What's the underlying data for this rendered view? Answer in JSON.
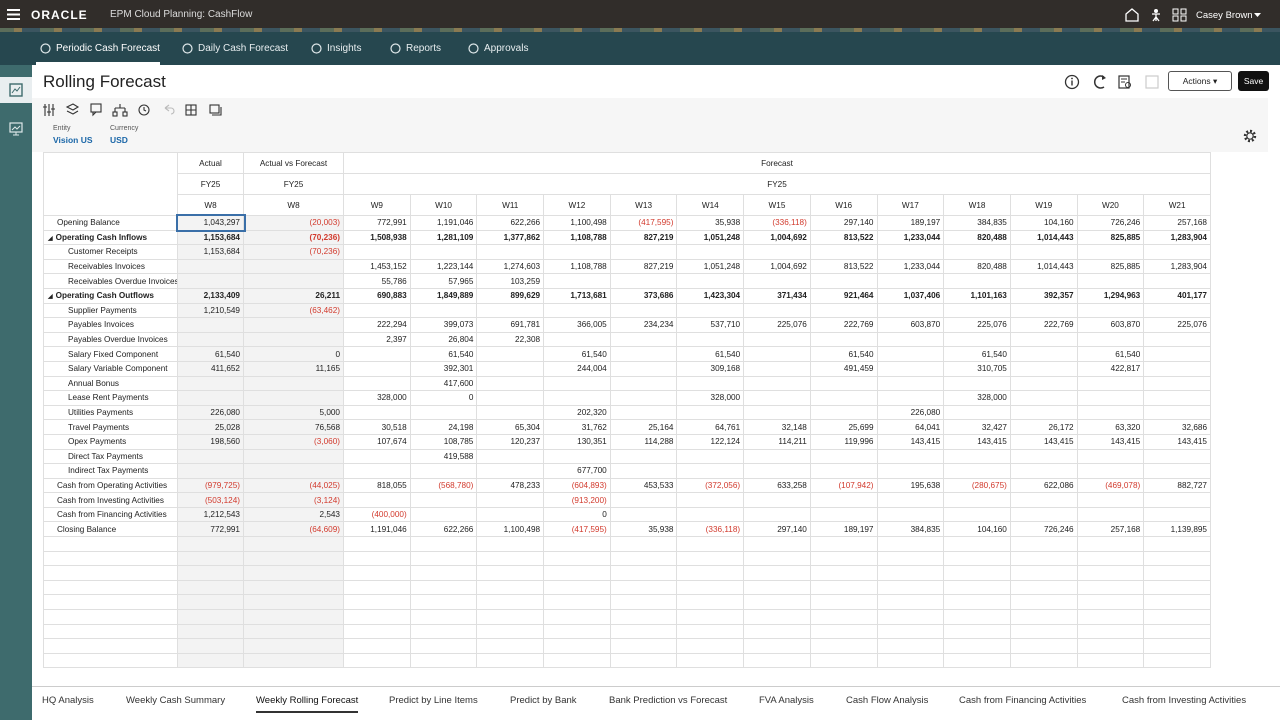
{
  "header": {
    "brand": "ORACLE",
    "app": "EPM Cloud Planning: CashFlow",
    "user": "Casey Brown"
  },
  "nav_tabs": [
    "Periodic Cash Forecast",
    "Daily Cash Forecast",
    "Insights",
    "Reports",
    "Approvals"
  ],
  "active_nav_tab": 0,
  "page": {
    "title": "Rolling Forecast",
    "actions": "Actions",
    "save": "Save"
  },
  "pov": [
    {
      "label": "Entity",
      "value": "Vision US"
    },
    {
      "label": "Currency",
      "value": "USD"
    }
  ],
  "grid": {
    "column_groups": [
      "Actual",
      "Actual vs Forecast",
      "Forecast"
    ],
    "years": [
      "FY25",
      "FY25",
      "FY25"
    ],
    "columns": [
      "W8",
      "W8",
      "W9",
      "W10",
      "W11",
      "W12",
      "W13",
      "W14",
      "W15",
      "W16",
      "W17",
      "W18",
      "W19",
      "W20",
      "W21"
    ],
    "rows": [
      {
        "label": "Opening Balance",
        "values": [
          "1,043,297",
          "(20,003)",
          "772,991",
          "1,191,046",
          "622,266",
          "1,100,498",
          "(417,595)",
          "35,938",
          "(336,118)",
          "297,140",
          "189,197",
          "384,835",
          "104,160",
          "726,246",
          "257,168"
        ]
      },
      {
        "label": "Operating Cash Inflows",
        "group": true,
        "values": [
          "1,153,684",
          "(70,236)",
          "1,508,938",
          "1,281,109",
          "1,377,862",
          "1,108,788",
          "827,219",
          "1,051,248",
          "1,004,692",
          "813,522",
          "1,233,044",
          "820,488",
          "1,014,443",
          "825,885",
          "1,283,904"
        ]
      },
      {
        "label": "Customer Receipts",
        "child": true,
        "values": [
          "1,153,684",
          "(70,236)",
          null,
          null,
          null,
          null,
          null,
          null,
          null,
          null,
          null,
          null,
          null,
          null,
          null
        ]
      },
      {
        "label": "Receivables Invoices",
        "child": true,
        "values": [
          null,
          null,
          "1,453,152",
          "1,223,144",
          "1,274,603",
          "1,108,788",
          "827,219",
          "1,051,248",
          "1,004,692",
          "813,522",
          "1,233,044",
          "820,488",
          "1,014,443",
          "825,885",
          "1,283,904"
        ]
      },
      {
        "label": "Receivables Overdue Invoices",
        "child": true,
        "values": [
          null,
          null,
          "55,786",
          "57,965",
          "103,259",
          null,
          null,
          null,
          null,
          null,
          null,
          null,
          null,
          null,
          null
        ]
      },
      {
        "label": "Operating Cash Outflows",
        "group": true,
        "values": [
          "2,133,409",
          "26,211",
          "690,883",
          "1,849,889",
          "899,629",
          "1,713,681",
          "373,686",
          "1,423,304",
          "371,434",
          "921,464",
          "1,037,406",
          "1,101,163",
          "392,357",
          "1,294,963",
          "401,177"
        ]
      },
      {
        "label": "Supplier Payments",
        "child": true,
        "values": [
          "1,210,549",
          "(63,462)",
          null,
          null,
          null,
          null,
          null,
          null,
          null,
          null,
          null,
          null,
          null,
          null,
          null
        ]
      },
      {
        "label": "Payables Invoices",
        "child": true,
        "values": [
          null,
          null,
          "222,294",
          "399,073",
          "691,781",
          "366,005",
          "234,234",
          "537,710",
          "225,076",
          "222,769",
          "603,870",
          "225,076",
          "222,769",
          "603,870",
          "225,076"
        ]
      },
      {
        "label": "Payables Overdue Invoices",
        "child": true,
        "values": [
          null,
          null,
          "2,397",
          "26,804",
          "22,308",
          null,
          null,
          null,
          null,
          null,
          null,
          null,
          null,
          null,
          null
        ]
      },
      {
        "label": "Salary Fixed  Component",
        "child": true,
        "values": [
          "61,540",
          "0",
          null,
          "61,540",
          null,
          "61,540",
          null,
          "61,540",
          null,
          "61,540",
          null,
          "61,540",
          null,
          "61,540",
          null
        ]
      },
      {
        "label": "Salary Variable Component",
        "child": true,
        "values": [
          "411,652",
          "11,165",
          null,
          "392,301",
          null,
          "244,004",
          null,
          "309,168",
          null,
          "491,459",
          null,
          "310,705",
          null,
          "422,817",
          null
        ]
      },
      {
        "label": "Annual Bonus",
        "child": true,
        "values": [
          null,
          null,
          null,
          "417,600",
          null,
          null,
          null,
          null,
          null,
          null,
          null,
          null,
          null,
          null,
          null
        ]
      },
      {
        "label": "Lease Rent Payments",
        "child": true,
        "values": [
          null,
          null,
          "328,000",
          "0",
          null,
          null,
          null,
          "328,000",
          null,
          null,
          null,
          "328,000",
          null,
          null,
          null
        ]
      },
      {
        "label": "Utilities Payments",
        "child": true,
        "values": [
          "226,080",
          "5,000",
          null,
          null,
          null,
          "202,320",
          null,
          null,
          null,
          null,
          "226,080",
          null,
          null,
          null,
          null
        ]
      },
      {
        "label": "Travel Payments",
        "child": true,
        "values": [
          "25,028",
          "76,568",
          "30,518",
          "24,198",
          "65,304",
          "31,762",
          "25,164",
          "64,761",
          "32,148",
          "25,699",
          "64,041",
          "32,427",
          "26,172",
          "63,320",
          "32,686"
        ]
      },
      {
        "label": "Opex Payments",
        "child": true,
        "values": [
          "198,560",
          "(3,060)",
          "107,674",
          "108,785",
          "120,237",
          "130,351",
          "114,288",
          "122,124",
          "114,211",
          "119,996",
          "143,415",
          "143,415",
          "143,415",
          "143,415",
          "143,415"
        ]
      },
      {
        "label": "Direct Tax Payments",
        "child": true,
        "values": [
          null,
          null,
          null,
          "419,588",
          null,
          null,
          null,
          null,
          null,
          null,
          null,
          null,
          null,
          null,
          null
        ]
      },
      {
        "label": "Indirect Tax Payments",
        "child": true,
        "values": [
          null,
          null,
          null,
          null,
          null,
          "677,700",
          null,
          null,
          null,
          null,
          null,
          null,
          null,
          null,
          null
        ]
      },
      {
        "label": "Cash from Operating Activities",
        "values": [
          "(979,725)",
          "(44,025)",
          "818,055",
          "(568,780)",
          "478,233",
          "(604,893)",
          "453,533",
          "(372,056)",
          "633,258",
          "(107,942)",
          "195,638",
          "(280,675)",
          "622,086",
          "(469,078)",
          "882,727"
        ]
      },
      {
        "label": "Cash from Investing Activities",
        "values": [
          "(503,124)",
          "(3,124)",
          null,
          null,
          null,
          "(913,200)",
          null,
          null,
          null,
          null,
          null,
          null,
          null,
          null,
          null
        ]
      },
      {
        "label": "Cash from Financing Activities",
        "values": [
          "1,212,543",
          "2,543",
          "(400,000)",
          null,
          null,
          "0",
          null,
          null,
          null,
          null,
          null,
          null,
          null,
          null,
          null
        ]
      },
      {
        "label": "Closing Balance",
        "values": [
          "772,991",
          "(64,609)",
          "1,191,046",
          "622,266",
          "1,100,498",
          "(417,595)",
          "35,938",
          "(336,118)",
          "297,140",
          "189,197",
          "384,835",
          "104,160",
          "726,246",
          "257,168",
          "1,139,895"
        ]
      }
    ]
  },
  "sheet_tabs": [
    "HQ Analysis",
    "Weekly Cash Summary",
    "Weekly Rolling Forecast",
    "Predict by Line Items",
    "Predict by Bank",
    "Bank Prediction vs Forecast",
    "FVA Analysis",
    "Cash Flow Analysis",
    "Cash from Financing Activities",
    "Cash from Investing Activities"
  ],
  "active_sheet_tab": 2
}
